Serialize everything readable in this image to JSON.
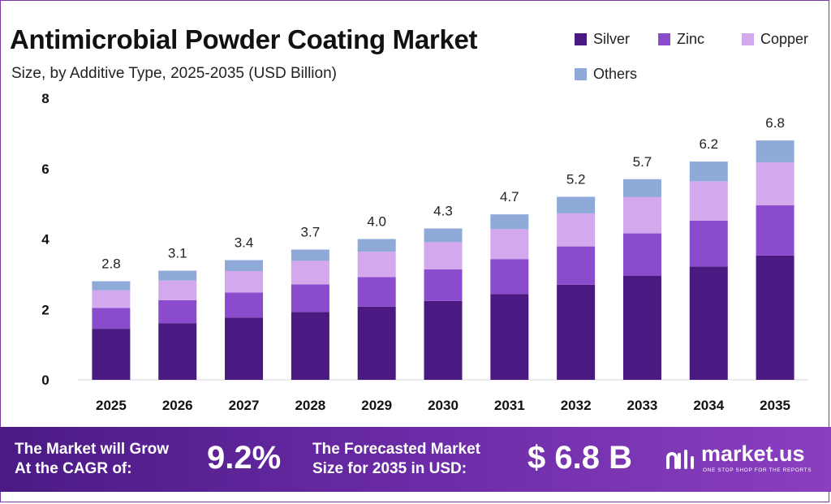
{
  "header": {
    "title": "Antimicrobial Powder Coating Market",
    "subtitle": "Size, by Additive Type, 2025-2035 (USD Billion)"
  },
  "colors": {
    "silver": "#4a1a82",
    "zinc": "#8a4ccc",
    "copper": "#d3a8ec",
    "others": "#8fa9d9",
    "footer_start": "#4b1a86",
    "footer_end": "#8a3fc0"
  },
  "legend": [
    {
      "name": "Silver",
      "color": "#4a1a82"
    },
    {
      "name": "Zinc",
      "color": "#8a4ccc"
    },
    {
      "name": "Copper",
      "color": "#d3a8ec"
    },
    {
      "name": "Others",
      "color": "#8fa9d9"
    }
  ],
  "chart_data": {
    "type": "bar",
    "stacked": true,
    "categories": [
      "2025",
      "2026",
      "2027",
      "2028",
      "2029",
      "2030",
      "2031",
      "2032",
      "2033",
      "2034",
      "2035"
    ],
    "series": [
      {
        "name": "Silver",
        "color": "#4a1a82",
        "values": [
          1.45,
          1.61,
          1.77,
          1.93,
          2.08,
          2.24,
          2.44,
          2.7,
          2.96,
          3.22,
          3.53
        ]
      },
      {
        "name": "Zinc",
        "color": "#8a4ccc",
        "values": [
          0.59,
          0.65,
          0.71,
          0.78,
          0.84,
          0.9,
          0.99,
          1.09,
          1.2,
          1.3,
          1.43
        ]
      },
      {
        "name": "Copper",
        "color": "#d3a8ec",
        "values": [
          0.5,
          0.56,
          0.61,
          0.67,
          0.72,
          0.77,
          0.85,
          0.94,
          1.03,
          1.12,
          1.22
        ]
      },
      {
        "name": "Others",
        "color": "#8fa9d9",
        "values": [
          0.26,
          0.28,
          0.31,
          0.32,
          0.36,
          0.39,
          0.42,
          0.47,
          0.51,
          0.56,
          0.62
        ]
      }
    ],
    "totals": [
      2.8,
      3.1,
      3.4,
      3.7,
      4.0,
      4.3,
      4.7,
      5.2,
      5.7,
      6.2,
      6.8
    ],
    "total_labels": [
      "2.8",
      "3.1",
      "3.4",
      "3.7",
      "4.0",
      "4.3",
      "4.7",
      "5.2",
      "5.7",
      "6.2",
      "6.8"
    ],
    "y_ticks": [
      "0",
      "2",
      "4",
      "6",
      "8"
    ],
    "ylim": [
      0,
      8
    ],
    "grid": false,
    "legend_position": "top-right",
    "xlabel": "",
    "ylabel": ""
  },
  "footer": {
    "cagr_label_line1": "The Market will Grow",
    "cagr_label_line2": "At the CAGR of:",
    "cagr_value": "9.2%",
    "forecast_label_line1": "The Forecasted Market",
    "forecast_label_line2": "Size for 2035 in USD:",
    "forecast_value": "$ 6.8 B",
    "brand_name": "market.us",
    "brand_tagline": "ONE STOP SHOP FOR THE REPORTS"
  }
}
